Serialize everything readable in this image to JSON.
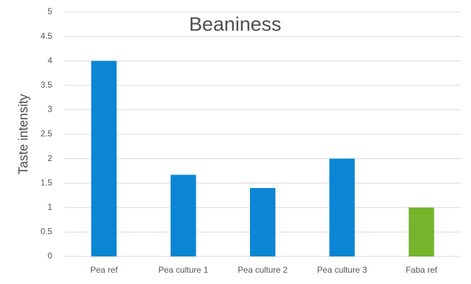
{
  "chart_data": {
    "type": "bar",
    "title": "Beaniness",
    "y_label": "Taste intensity",
    "categories": [
      "Pea ref",
      "Pea culture 1",
      "Pea culture 2",
      "Pea culture 3",
      "Faba ref"
    ],
    "values": [
      4,
      1.67,
      1.4,
      2,
      1
    ],
    "colors": [
      "#0a86d4",
      "#0a86d4",
      "#0a86d4",
      "#0a86d4",
      "#74b52c"
    ],
    "ylim": [
      0,
      5
    ],
    "yticks": [
      0,
      0.5,
      1,
      1.5,
      2,
      2.5,
      3,
      3.5,
      4,
      4.5,
      5
    ],
    "grid": true
  }
}
